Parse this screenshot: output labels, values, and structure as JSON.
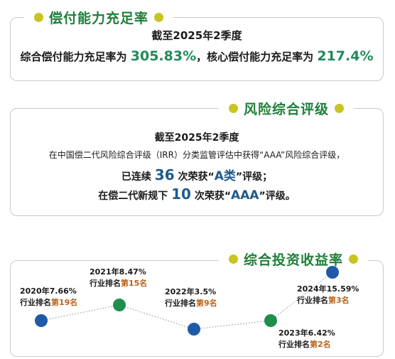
{
  "sections": {
    "solvency": {
      "title": "偿付能力充足率",
      "period": "截至2025年2季度",
      "line_prefix": "综合偿付能力充足率为",
      "comprehensive_value": "305.83%",
      "line_mid": "，核心偿付能力充足率为",
      "core_value": "217.4%"
    },
    "risk": {
      "title": "风险综合评级",
      "period": "截至2025年2季度",
      "line1": "在中国偿二代风险综合评级（IRR）分类监管评估中获得“AAA”风险综合评级，",
      "line2_prefix": "已连续",
      "line2_number": "36",
      "line2_mid": "次荣获“",
      "line2_grade": "A类",
      "line2_suffix": "”评级；",
      "line3_prefix": "在偿二代新规下",
      "line3_number": "10",
      "line3_mid": "次荣获“",
      "line3_grade": "AAA",
      "line3_suffix": "”评级。"
    },
    "investment": {
      "title": "综合投资收益率",
      "rank_prefix": "行业排名",
      "points": [
        {
          "year_label": "2020年7.66%",
          "rank": "第19名",
          "color": "#1f5aa8"
        },
        {
          "year_label": "2021年8.47%",
          "rank": "第15名",
          "color": "#1e8f4a"
        },
        {
          "year_label": "2022年3.5%",
          "rank": "第9名",
          "color": "#1f5aa8"
        },
        {
          "year_label": "2023年6.42%",
          "rank": "第2名",
          "color": "#1e8f4a"
        },
        {
          "year_label": "2024年15.59%",
          "rank": "第3名",
          "color": "#1f5aa8"
        }
      ]
    }
  },
  "colors": {
    "heading_green": "#1f7f3a",
    "dot_olive": "#c9c51f",
    "border_gray": "#c9c9c9",
    "value_green": "#1f8a5a",
    "value_blue": "#1f5a8a",
    "rank_orange": "#b8621b"
  }
}
